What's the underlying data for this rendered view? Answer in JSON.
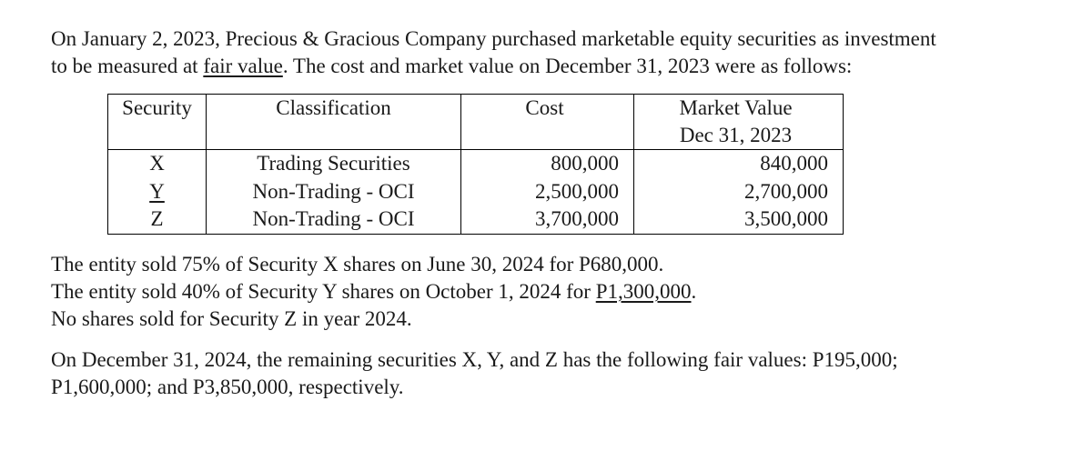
{
  "intro": {
    "line1": "On January 2, 2023, Precious & Gracious Company purchased marketable equity securities as investment",
    "line2_a": "to be measured at ",
    "line2_u": "fair value",
    "line2_b": ". The cost and market value on December 31, 2023 were as follows:"
  },
  "table": {
    "headers": {
      "security": "Security",
      "classification": "Classification",
      "cost": "Cost",
      "market_value_top": "Market Value",
      "market_value_bot": "Dec 31, 2023"
    },
    "rows": [
      {
        "security": "X",
        "classification": "Trading Securities",
        "cost": "800,000",
        "mv": "840,000"
      },
      {
        "security": "Y",
        "classification": "Non-Trading - OCI",
        "cost": "2,500,000",
        "mv": "2,700,000"
      },
      {
        "security": "Z",
        "classification": "Non-Trading - OCI",
        "cost": "3,700,000",
        "mv": "3,500,000"
      }
    ]
  },
  "sales": {
    "l1": "The entity sold 75% of Security X shares on June 30, 2024 for P680,000.",
    "l2_a": "The entity sold 40% of Security Y shares on October 1, 2024 for ",
    "l2_u": "P1,300,000",
    "l2_b": ".",
    "l3": "No shares sold for Security Z in year 2024."
  },
  "closing": {
    "l1": "On December 31, 2024, the remaining securities X, Y, and Z has the following fair values: P195,000;",
    "l2": "P1,600,000; and P3,850,000, respectively."
  }
}
